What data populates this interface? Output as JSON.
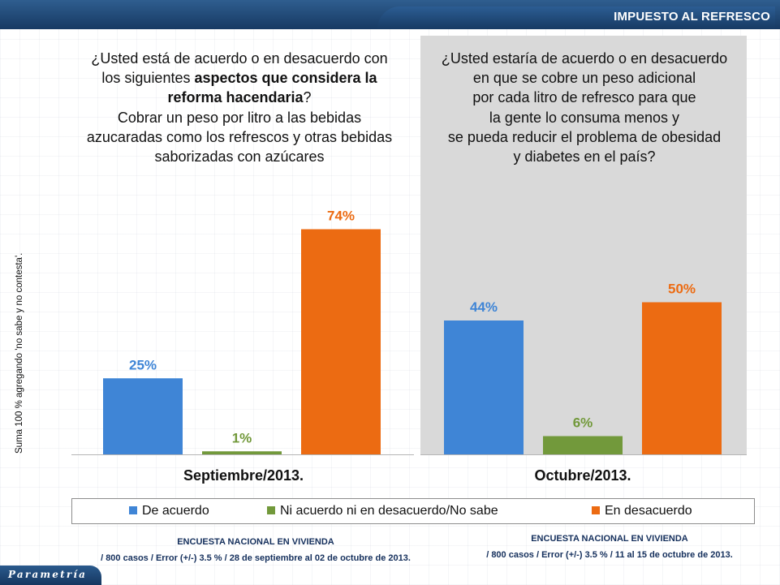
{
  "header": {
    "title": "IMPUESTO AL REFRESCO"
  },
  "questions": {
    "left": {
      "pre": "¿Usted está de acuerdo o en desacuerdo con los siguientes ",
      "bold1": "aspectos que considera la reforma hacendaria",
      "post": "?",
      "line2": "Cobrar un peso por litro a las bebidas azucaradas como los refrescos y otras bebidas saborizadas con azúcares"
    },
    "right": {
      "lines": [
        "¿Usted estaría de acuerdo o en desacuerdo",
        "en que se cobre un peso adicional",
        "por cada litro de refresco para que",
        "la gente lo consuma menos y",
        "se pueda reducir el problema de obesidad",
        "y diabetes en el país?"
      ]
    }
  },
  "yaxis_note": "Suma 100 % agregando 'no sabe y no contesta'.",
  "colors": {
    "de_acuerdo": "#3f85d6",
    "ni_acuerdo": "#72993b",
    "desacuerdo": "#ec6b12",
    "gray_panel": "#d9d9d9",
    "navy": "#173a63"
  },
  "chart_data": {
    "type": "bar",
    "categories": [
      "Septiembre/2013.",
      "Octubre/2013."
    ],
    "series": [
      {
        "name": "De acuerdo",
        "values": [
          25,
          44
        ],
        "labels": [
          "25%",
          "44%"
        ]
      },
      {
        "name": "Ni acuerdo ni en desacuerdo/No sabe",
        "values": [
          1,
          6
        ],
        "labels": [
          "1%",
          "6%"
        ]
      },
      {
        "name": "En desacuerdo",
        "values": [
          74,
          50
        ],
        "labels": [
          "74%",
          "50%"
        ]
      }
    ],
    "ylim": [
      0,
      100
    ],
    "legend_position": "bottom"
  },
  "footer": {
    "left": [
      "ENCUESTA NACIONAL EN VIVIENDA",
      "/ 800 casos / Error (+/-) 3.5 % / 28 de septiembre al 02 de octubre de 2013."
    ],
    "right": [
      "ENCUESTA NACIONAL EN VIVIENDA",
      "/ 800 casos / Error (+/-) 3.5 % / 11 al 15 de octubre de 2013."
    ]
  },
  "brand": "Parametría"
}
